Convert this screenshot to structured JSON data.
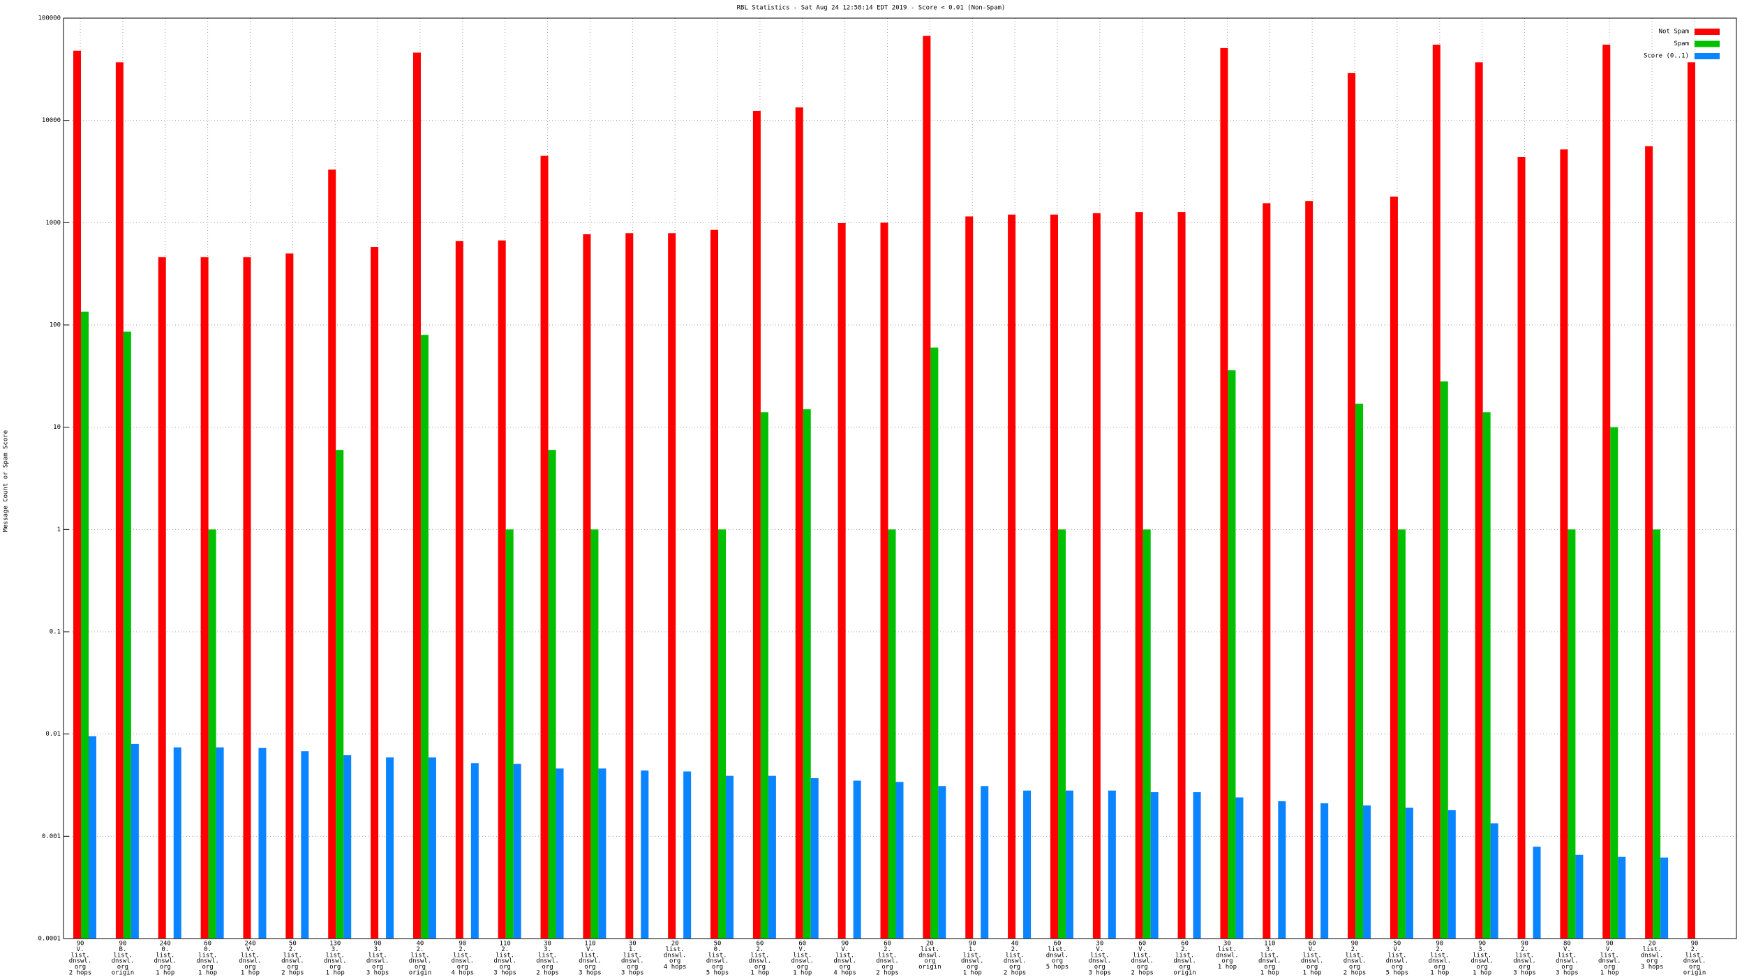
{
  "chart_data": {
    "type": "bar",
    "title": "RBL Statistics - Sat Aug 24 12:58:14 EDT 2019 - Score < 0.01 (Non-Spam)",
    "y_label": "Message Count or Spam Score",
    "y_scale": "log",
    "grid": true,
    "legend_position": "top-right",
    "ylim": [
      0.0001,
      100000
    ],
    "yticks": [
      0.0001,
      0.001,
      0.01,
      0.1,
      1,
      10,
      100,
      1000,
      10000,
      100000
    ],
    "categories": [
      [
        "90",
        "V.",
        "list.",
        "dnswl.",
        "org",
        "2 hops"
      ],
      [
        "90",
        "B.",
        "list.",
        "dnswl.",
        "org",
        "origin"
      ],
      [
        "240",
        "0.",
        "list.",
        "dnswl.",
        "org",
        "1 hop"
      ],
      [
        "60",
        "0.",
        "list.",
        "dnswl.",
        "org",
        "1 hop"
      ],
      [
        "240",
        "V.",
        "list.",
        "dnswl.",
        "org",
        "1 hop"
      ],
      [
        "50",
        "2.",
        "list.",
        "dnswl.",
        "org",
        "2 hops"
      ],
      [
        "130",
        "3.",
        "list.",
        "dnswl.",
        "org",
        "1 hop"
      ],
      [
        "90",
        "3.",
        "list.",
        "dnswl.",
        "org",
        "3 hops"
      ],
      [
        "40",
        "2.",
        "list.",
        "dnswl.",
        "org",
        "origin"
      ],
      [
        "90",
        "2.",
        "list.",
        "dnswl.",
        "org",
        "4 hops"
      ],
      [
        "110",
        "2.",
        "list.",
        "dnswl.",
        "org",
        "3 hops"
      ],
      [
        "30",
        "3.",
        "list.",
        "dnswl.",
        "org",
        "2 hops"
      ],
      [
        "110",
        "V.",
        "list.",
        "dnswl.",
        "org",
        "3 hops"
      ],
      [
        "30",
        "1.",
        "list.",
        "dnswl.",
        "org",
        "3 hops"
      ],
      [
        "20",
        "list.",
        "dnswl.",
        "org",
        "4 hops"
      ],
      [
        "50",
        "0.",
        "list.",
        "dnswl.",
        "org",
        "5 hops"
      ],
      [
        "60",
        "2.",
        "list.",
        "dnswl.",
        "org",
        "1 hop"
      ],
      [
        "60",
        "V.",
        "list.",
        "dnswl.",
        "org",
        "1 hop"
      ],
      [
        "90",
        "V.",
        "list.",
        "dnswl.",
        "org",
        "4 hops"
      ],
      [
        "60",
        "2.",
        "list.",
        "dnswl.",
        "org",
        "2 hops"
      ],
      [
        "20",
        "list.",
        "dnswl.",
        "org",
        "origin"
      ],
      [
        "90",
        "1.",
        "list.",
        "dnswl.",
        "org",
        "1 hop"
      ],
      [
        "40",
        "2.",
        "list.",
        "dnswl.",
        "org",
        "2 hops"
      ],
      [
        "60",
        "list.",
        "dnswl.",
        "org",
        "5 hops"
      ],
      [
        "30",
        "V.",
        "list.",
        "dnswl.",
        "org",
        "3 hops"
      ],
      [
        "60",
        "V.",
        "list.",
        "dnswl.",
        "org",
        "2 hops"
      ],
      [
        "60",
        "2.",
        "list.",
        "dnswl.",
        "org",
        "origin"
      ],
      [
        "30",
        "list.",
        "dnswl.",
        "org",
        "1 hop"
      ],
      [
        "110",
        "3.",
        "list.",
        "dnswl.",
        "org",
        "1 hop"
      ],
      [
        "60",
        "V.",
        "list.",
        "dnswl.",
        "org",
        "1 hop"
      ],
      [
        "90",
        "2.",
        "list.",
        "dnswl.",
        "org",
        "2 hops"
      ],
      [
        "50",
        "V.",
        "list.",
        "dnswl.",
        "org",
        "5 hops"
      ],
      [
        "90",
        "2.",
        "list.",
        "dnswl.",
        "org",
        "1 hop"
      ],
      [
        "90",
        "3.",
        "list.",
        "dnswl.",
        "org",
        "1 hop"
      ],
      [
        "90",
        "2.",
        "list.",
        "dnswl.",
        "org",
        "3 hops"
      ],
      [
        "80",
        "V.",
        "list.",
        "dnswl.",
        "org",
        "3 hops"
      ],
      [
        "90",
        "V.",
        "list.",
        "dnswl.",
        "org",
        "1 hop"
      ],
      [
        "20",
        "list.",
        "dnswl.",
        "org",
        "3 hops"
      ],
      [
        "90",
        "2.",
        "list.",
        "dnswl.",
        "org",
        "origin"
      ]
    ],
    "series": [
      {
        "name": "Not Spam",
        "color": "#ff0000",
        "values": [
          48000,
          37000,
          460,
          460,
          460,
          500,
          3300,
          580,
          46000,
          660,
          670,
          4500,
          770,
          790,
          790,
          850,
          12400,
          13400,
          990,
          1000,
          67000,
          1150,
          1200,
          1200,
          1240,
          1270,
          1270,
          51000,
          1550,
          1630,
          29000,
          1800,
          55000,
          37000,
          4400,
          5200,
          55000,
          5600,
          37000
        ]
      },
      {
        "name": "Spam",
        "color": "#00c000",
        "values": [
          135,
          86,
          null,
          1,
          null,
          null,
          6,
          null,
          80,
          null,
          1,
          6,
          1,
          null,
          null,
          1,
          14,
          15,
          null,
          1,
          60,
          null,
          null,
          1,
          null,
          1,
          null,
          36,
          null,
          null,
          17,
          1,
          28,
          14,
          null,
          1,
          10,
          1,
          null
        ]
      },
      {
        "name": "Score (0..1)",
        "color": "#0a84ff",
        "values": [
          0.0095,
          0.008,
          0.0074,
          0.0074,
          0.0073,
          0.0068,
          0.0062,
          0.0059,
          0.0059,
          0.0052,
          0.0051,
          0.0046,
          0.0046,
          0.0044,
          0.0043,
          0.0039,
          0.0039,
          0.0037,
          0.0035,
          0.0034,
          0.0031,
          0.0031,
          0.0028,
          0.0028,
          0.0028,
          0.0027,
          0.0027,
          0.0024,
          0.0022,
          0.0021,
          0.002,
          0.0019,
          0.0018,
          0.00134,
          0.00079,
          0.00066,
          0.00063,
          0.00062,
          null
        ]
      }
    ]
  }
}
